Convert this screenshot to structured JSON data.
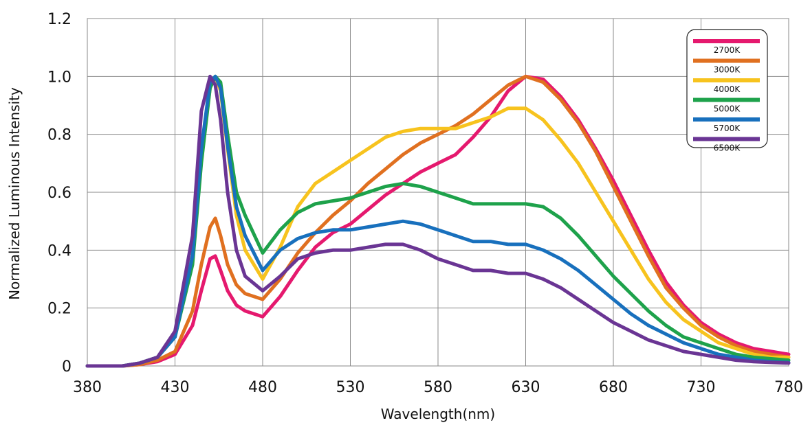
{
  "chart_data": {
    "type": "line",
    "title": "",
    "xlabel": "Wavelength(nm)",
    "ylabel": "Normalized Luminous Intensity",
    "xlim": [
      380,
      780
    ],
    "ylim": [
      0,
      1.2
    ],
    "x_ticks": [
      380,
      430,
      480,
      530,
      580,
      630,
      680,
      730,
      780
    ],
    "x_tick_labels": [
      "380",
      "430",
      "480",
      "530",
      "580",
      "630",
      "680",
      "730",
      "780"
    ],
    "y_ticks": [
      0,
      0.2,
      0.4,
      0.6,
      0.8,
      1.0,
      1.2
    ],
    "y_tick_labels": [
      "0",
      "0.2",
      "0.4",
      "0.6",
      "0.8",
      "1.0",
      "1.2"
    ],
    "grid": true,
    "legend_position": "top-right",
    "x": [
      380,
      400,
      410,
      420,
      430,
      440,
      445,
      450,
      453,
      456,
      460,
      465,
      470,
      480,
      490,
      500,
      510,
      520,
      530,
      540,
      550,
      560,
      570,
      580,
      590,
      600,
      610,
      620,
      630,
      640,
      650,
      660,
      670,
      680,
      690,
      700,
      710,
      720,
      730,
      740,
      750,
      760,
      770,
      780
    ],
    "series": [
      {
        "name": "2700K",
        "color": "#e5196e",
        "values": [
          0.0,
          0.0,
          0.005,
          0.015,
          0.04,
          0.14,
          0.26,
          0.37,
          0.38,
          0.33,
          0.26,
          0.21,
          0.19,
          0.17,
          0.24,
          0.33,
          0.41,
          0.46,
          0.49,
          0.54,
          0.59,
          0.63,
          0.67,
          0.7,
          0.73,
          0.79,
          0.86,
          0.95,
          1.0,
          0.99,
          0.93,
          0.85,
          0.75,
          0.64,
          0.52,
          0.4,
          0.29,
          0.21,
          0.15,
          0.11,
          0.08,
          0.06,
          0.05,
          0.04
        ]
      },
      {
        "name": "3000K",
        "color": "#e07020",
        "values": [
          0.0,
          0.0,
          0.005,
          0.02,
          0.05,
          0.19,
          0.35,
          0.48,
          0.51,
          0.45,
          0.35,
          0.28,
          0.25,
          0.23,
          0.3,
          0.39,
          0.46,
          0.52,
          0.57,
          0.63,
          0.68,
          0.73,
          0.77,
          0.8,
          0.83,
          0.87,
          0.92,
          0.97,
          1.0,
          0.98,
          0.92,
          0.84,
          0.74,
          0.62,
          0.5,
          0.38,
          0.27,
          0.2,
          0.14,
          0.1,
          0.07,
          0.05,
          0.04,
          0.03
        ]
      },
      {
        "name": "4000K",
        "color": "#f7c31e",
        "values": [
          0.0,
          0.0,
          0.01,
          0.03,
          0.1,
          0.38,
          0.72,
          0.96,
          1.0,
          0.95,
          0.75,
          0.52,
          0.4,
          0.3,
          0.41,
          0.55,
          0.63,
          0.67,
          0.71,
          0.75,
          0.79,
          0.81,
          0.82,
          0.82,
          0.82,
          0.84,
          0.86,
          0.89,
          0.89,
          0.85,
          0.78,
          0.7,
          0.6,
          0.5,
          0.4,
          0.3,
          0.22,
          0.16,
          0.12,
          0.08,
          0.06,
          0.04,
          0.03,
          0.03
        ]
      },
      {
        "name": "5000K",
        "color": "#1ea24b",
        "values": [
          0.0,
          0.0,
          0.01,
          0.03,
          0.1,
          0.35,
          0.7,
          0.96,
          1.0,
          0.98,
          0.8,
          0.6,
          0.52,
          0.39,
          0.47,
          0.53,
          0.56,
          0.57,
          0.58,
          0.6,
          0.62,
          0.63,
          0.62,
          0.6,
          0.58,
          0.56,
          0.56,
          0.56,
          0.56,
          0.55,
          0.51,
          0.45,
          0.38,
          0.31,
          0.25,
          0.19,
          0.14,
          0.1,
          0.08,
          0.06,
          0.04,
          0.03,
          0.025,
          0.02
        ]
      },
      {
        "name": "5700K",
        "color": "#1870bd",
        "values": [
          0.0,
          0.0,
          0.01,
          0.03,
          0.1,
          0.38,
          0.75,
          0.98,
          1.0,
          0.96,
          0.76,
          0.55,
          0.45,
          0.33,
          0.4,
          0.44,
          0.46,
          0.47,
          0.47,
          0.48,
          0.49,
          0.5,
          0.49,
          0.47,
          0.45,
          0.43,
          0.43,
          0.42,
          0.42,
          0.4,
          0.37,
          0.33,
          0.28,
          0.23,
          0.18,
          0.14,
          0.11,
          0.08,
          0.06,
          0.04,
          0.03,
          0.02,
          0.015,
          0.012
        ]
      },
      {
        "name": "6500K",
        "color": "#6a3594",
        "values": [
          0.0,
          0.0,
          0.01,
          0.03,
          0.12,
          0.45,
          0.88,
          1.0,
          0.97,
          0.85,
          0.6,
          0.4,
          0.31,
          0.26,
          0.31,
          0.37,
          0.39,
          0.4,
          0.4,
          0.41,
          0.42,
          0.42,
          0.4,
          0.37,
          0.35,
          0.33,
          0.33,
          0.32,
          0.32,
          0.3,
          0.27,
          0.23,
          0.19,
          0.15,
          0.12,
          0.09,
          0.07,
          0.05,
          0.04,
          0.03,
          0.02,
          0.015,
          0.012,
          0.01
        ]
      }
    ]
  }
}
